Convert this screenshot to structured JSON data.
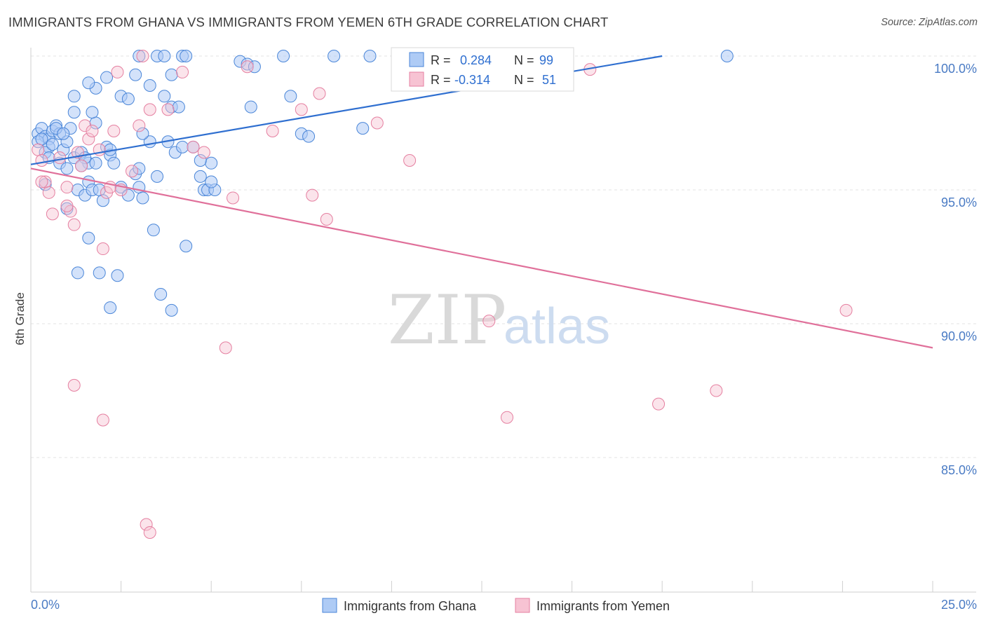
{
  "title": "IMMIGRANTS FROM GHANA VS IMMIGRANTS FROM YEMEN 6TH GRADE CORRELATION CHART",
  "source": "Source: ZipAtlas.com",
  "watermark": {
    "zip": "ZIP",
    "atlas": "atlas"
  },
  "legend": {
    "r_label": "R =",
    "n_label": "N =",
    "series": [
      {
        "name": "Immigrants from Ghana",
        "r": "0.284",
        "n": "99",
        "fill": "#aecbf5",
        "stroke": "#4a86d8"
      },
      {
        "name": "Immigrants from Yemen",
        "r": "-0.314",
        "n": "51",
        "fill": "#f7c3d3",
        "stroke": "#e57fa0"
      }
    ]
  },
  "chart_data": {
    "type": "scatter",
    "title": "IMMIGRANTS FROM GHANA VS IMMIGRANTS FROM YEMEN 6TH GRADE CORRELATION CHART",
    "xlabel": "",
    "ylabel": "6th Grade",
    "xlim": [
      0,
      25
    ],
    "ylim": [
      80.5,
      100.8
    ],
    "x_tick_labels": [
      "0.0%",
      "25.0%"
    ],
    "y_ticks": [
      85,
      90,
      95,
      100
    ],
    "y_tick_labels": [
      "85.0%",
      "90.0%",
      "95.0%",
      "100.0%"
    ],
    "grid": "horizontal dashed",
    "legend_position": "top-center",
    "series": [
      {
        "name": "Immigrants from Ghana",
        "color": "#4a86d8",
        "trend": {
          "x": [
            0,
            17.5
          ],
          "y": [
            95.95,
            100.0
          ]
        },
        "points": [
          [
            0.2,
            97.1
          ],
          [
            0.3,
            97.3
          ],
          [
            0.4,
            97.0
          ],
          [
            0.2,
            96.8
          ],
          [
            0.5,
            96.9
          ],
          [
            0.6,
            97.2
          ],
          [
            0.7,
            97.4
          ],
          [
            0.5,
            96.6
          ],
          [
            0.3,
            96.9
          ],
          [
            0.8,
            97.1
          ],
          [
            0.9,
            96.5
          ],
          [
            1.0,
            96.8
          ],
          [
            1.1,
            97.3
          ],
          [
            0.4,
            96.4
          ],
          [
            0.6,
            96.7
          ],
          [
            1.2,
            96.2
          ],
          [
            0.8,
            96.0
          ],
          [
            1.4,
            96.4
          ],
          [
            1.6,
            96.0
          ],
          [
            1.5,
            96.2
          ],
          [
            1.8,
            96.0
          ],
          [
            2.1,
            96.6
          ],
          [
            2.2,
            96.3
          ],
          [
            2.3,
            96.0
          ],
          [
            1.0,
            95.8
          ],
          [
            1.3,
            95.0
          ],
          [
            1.5,
            94.8
          ],
          [
            1.6,
            95.3
          ],
          [
            1.7,
            95.0
          ],
          [
            0.4,
            95.2
          ],
          [
            1.9,
            95.0
          ],
          [
            2.0,
            94.6
          ],
          [
            2.5,
            95.1
          ],
          [
            2.7,
            94.8
          ],
          [
            2.9,
            95.6
          ],
          [
            3.0,
            95.1
          ],
          [
            3.1,
            94.7
          ],
          [
            3.5,
            95.5
          ],
          [
            1.0,
            94.3
          ],
          [
            3.3,
            96.8
          ],
          [
            3.8,
            96.8
          ],
          [
            4.0,
            96.4
          ],
          [
            4.2,
            96.6
          ],
          [
            4.5,
            96.6
          ],
          [
            4.7,
            95.5
          ],
          [
            4.8,
            95.0
          ],
          [
            4.9,
            95.0
          ],
          [
            5.0,
            96.0
          ],
          [
            5.1,
            95.0
          ],
          [
            4.7,
            96.1
          ],
          [
            1.2,
            97.9
          ],
          [
            1.8,
            97.5
          ],
          [
            1.7,
            97.9
          ],
          [
            1.2,
            98.5
          ],
          [
            1.8,
            98.8
          ],
          [
            2.1,
            99.2
          ],
          [
            2.5,
            98.5
          ],
          [
            2.7,
            98.4
          ],
          [
            2.9,
            99.3
          ],
          [
            3.3,
            98.9
          ],
          [
            3.7,
            98.5
          ],
          [
            3.9,
            98.1
          ],
          [
            3.9,
            99.3
          ],
          [
            3.1,
            97.1
          ],
          [
            4.1,
            98.1
          ],
          [
            1.6,
            99.0
          ],
          [
            3.0,
            100.0
          ],
          [
            3.5,
            100.0
          ],
          [
            3.7,
            100.0
          ],
          [
            4.2,
            100.0
          ],
          [
            4.3,
            100.0
          ],
          [
            5.8,
            99.8
          ],
          [
            6.0,
            99.7
          ],
          [
            6.1,
            98.1
          ],
          [
            6.2,
            99.6
          ],
          [
            7.0,
            100.0
          ],
          [
            7.2,
            98.5
          ],
          [
            7.5,
            97.1
          ],
          [
            7.7,
            97.0
          ],
          [
            8.4,
            100.0
          ],
          [
            9.2,
            97.3
          ],
          [
            9.4,
            100.0
          ],
          [
            19.3,
            100.0
          ],
          [
            1.6,
            93.2
          ],
          [
            1.3,
            91.9
          ],
          [
            1.9,
            91.9
          ],
          [
            2.4,
            91.8
          ],
          [
            3.4,
            93.5
          ],
          [
            3.6,
            91.1
          ],
          [
            4.3,
            92.9
          ],
          [
            2.2,
            90.6
          ],
          [
            3.9,
            90.5
          ],
          [
            0.7,
            97.3
          ],
          [
            0.9,
            97.1
          ],
          [
            2.2,
            96.5
          ],
          [
            3.0,
            95.8
          ],
          [
            5.0,
            95.3
          ],
          [
            0.5,
            96.2
          ],
          [
            1.4,
            95.9
          ]
        ]
      },
      {
        "name": "Immigrants from Yemen",
        "color": "#e57fa0",
        "trend": {
          "x": [
            0,
            25
          ],
          "y": [
            95.8,
            89.1
          ]
        },
        "points": [
          [
            0.2,
            96.5
          ],
          [
            0.3,
            96.1
          ],
          [
            0.4,
            95.3
          ],
          [
            0.5,
            94.9
          ],
          [
            0.6,
            94.1
          ],
          [
            0.8,
            96.2
          ],
          [
            1.0,
            95.1
          ],
          [
            1.1,
            94.2
          ],
          [
            1.2,
            93.7
          ],
          [
            1.3,
            96.4
          ],
          [
            1.4,
            95.9
          ],
          [
            1.5,
            97.4
          ],
          [
            1.6,
            96.9
          ],
          [
            1.7,
            97.2
          ],
          [
            1.9,
            96.5
          ],
          [
            2.0,
            92.8
          ],
          [
            2.1,
            94.9
          ],
          [
            2.2,
            95.1
          ],
          [
            2.3,
            97.2
          ],
          [
            2.4,
            99.4
          ],
          [
            2.5,
            95.0
          ],
          [
            2.8,
            95.7
          ],
          [
            3.0,
            97.4
          ],
          [
            3.1,
            100.0
          ],
          [
            3.3,
            98.0
          ],
          [
            3.8,
            98.0
          ],
          [
            4.2,
            99.4
          ],
          [
            4.5,
            96.6
          ],
          [
            4.8,
            96.4
          ],
          [
            5.6,
            94.7
          ],
          [
            6.0,
            99.6
          ],
          [
            6.7,
            97.2
          ],
          [
            7.5,
            98.0
          ],
          [
            7.8,
            94.8
          ],
          [
            8.0,
            98.6
          ],
          [
            8.2,
            93.9
          ],
          [
            9.6,
            97.5
          ],
          [
            10.5,
            96.1
          ],
          [
            12.7,
            90.1
          ],
          [
            13.2,
            86.5
          ],
          [
            15.5,
            99.5
          ],
          [
            17.4,
            87.0
          ],
          [
            19.0,
            87.5
          ],
          [
            22.6,
            90.5
          ],
          [
            0.3,
            95.3
          ],
          [
            1.2,
            87.7
          ],
          [
            2.0,
            86.4
          ],
          [
            3.2,
            82.5
          ],
          [
            3.3,
            82.2
          ],
          [
            5.4,
            89.1
          ],
          [
            1.0,
            94.4
          ]
        ]
      }
    ]
  }
}
